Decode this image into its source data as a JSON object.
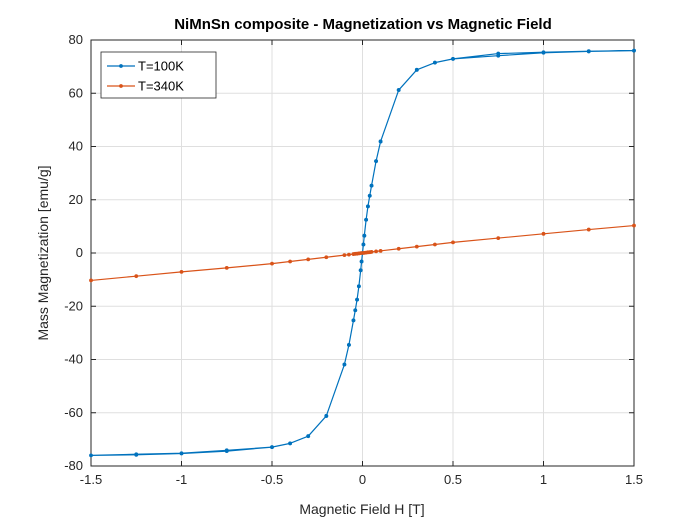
{
  "chart_data": {
    "type": "line",
    "title": "NiMnSn composite - Magnetization vs Magnetic Field",
    "xlabel": "Magnetic Field H [T]",
    "ylabel": "Mass Magnetization [emu/g]",
    "xlim": [
      -1.5,
      1.5
    ],
    "ylim": [
      -80,
      80
    ],
    "xticks": [
      -1.5,
      -1,
      -0.5,
      0,
      0.5,
      1,
      1.5
    ],
    "xtick_labels": [
      "-1.5",
      "-1",
      "-0.5",
      "0",
      "0.5",
      "1",
      "1.5"
    ],
    "yticks": [
      -80,
      -60,
      -40,
      -20,
      0,
      20,
      40,
      60,
      80
    ],
    "ytick_labels": [
      "-80",
      "-60",
      "-40",
      "-20",
      "0",
      "20",
      "40",
      "60",
      "80"
    ],
    "grid": true,
    "legend_position": "top-left",
    "series": [
      {
        "name": "T=100K",
        "color": "#0072BD",
        "x": [
          1.5,
          1.25,
          1.0,
          0.75,
          0.5,
          0.4,
          0.3,
          0.2,
          0.1,
          0.075,
          0.05,
          0.04,
          0.03,
          0.02,
          0.01,
          0.005,
          0.0,
          -0.005,
          -0.01,
          -0.02,
          -0.03,
          -0.04,
          -0.05,
          -0.075,
          -0.1,
          -0.2,
          -0.3,
          -0.4,
          -0.5,
          -0.75,
          -1.0,
          -1.25,
          -1.5,
          -1.25,
          -1.0,
          -0.75,
          -0.5,
          -0.4,
          -0.3,
          -0.2,
          -0.1,
          -0.075,
          -0.05,
          -0.04,
          -0.03,
          -0.02,
          -0.01,
          -0.005,
          0.0,
          0.005,
          0.01,
          0.02,
          0.03,
          0.04,
          0.05,
          0.075,
          0.1,
          0.2,
          0.3,
          0.4,
          0.5,
          0.75,
          1.0,
          1.25,
          1.5
        ],
        "y": [
          76,
          75.7,
          75.2,
          74.1,
          72.9,
          71.5,
          68.8,
          61.2,
          41.9,
          34.5,
          25.3,
          21.5,
          17.5,
          12.5,
          6.5,
          3.2,
          0.0,
          -3.2,
          -6.5,
          -12.5,
          -17.5,
          -21.5,
          -25.3,
          -34.5,
          -41.9,
          -61.2,
          -68.8,
          -71.5,
          -72.9,
          -74.4,
          -75.3,
          -75.8,
          -76,
          -75.6,
          -75.2,
          -74.1,
          -72.9,
          -71.5,
          -68.8,
          -61.2,
          -41.9,
          -34.5,
          -25.3,
          -21.5,
          -17.5,
          -12.5,
          -6.5,
          -3.2,
          0.0,
          3.2,
          6.5,
          12.5,
          17.5,
          21.5,
          25.3,
          34.5,
          41.9,
          61.2,
          68.8,
          71.5,
          72.9,
          74.9,
          75.4,
          75.8,
          76
        ]
      },
      {
        "name": "T=340K",
        "color": "#D95319",
        "x": [
          -1.5,
          -1.25,
          -1.0,
          -0.75,
          -0.5,
          -0.4,
          -0.3,
          -0.2,
          -0.1,
          -0.075,
          -0.05,
          -0.04,
          -0.03,
          -0.02,
          -0.01,
          0.0,
          0.01,
          0.02,
          0.03,
          0.04,
          0.05,
          0.075,
          0.1,
          0.2,
          0.3,
          0.4,
          0.5,
          0.75,
          1.0,
          1.25,
          1.5
        ],
        "y": [
          -10.3,
          -8.7,
          -7.1,
          -5.6,
          -4.0,
          -3.2,
          -2.4,
          -1.6,
          -0.8,
          -0.6,
          -0.4,
          -0.3,
          -0.25,
          -0.15,
          -0.05,
          0.0,
          0.05,
          0.15,
          0.25,
          0.3,
          0.4,
          0.6,
          0.8,
          1.6,
          2.4,
          3.2,
          4.0,
          5.6,
          7.2,
          8.8,
          10.3
        ]
      }
    ]
  }
}
